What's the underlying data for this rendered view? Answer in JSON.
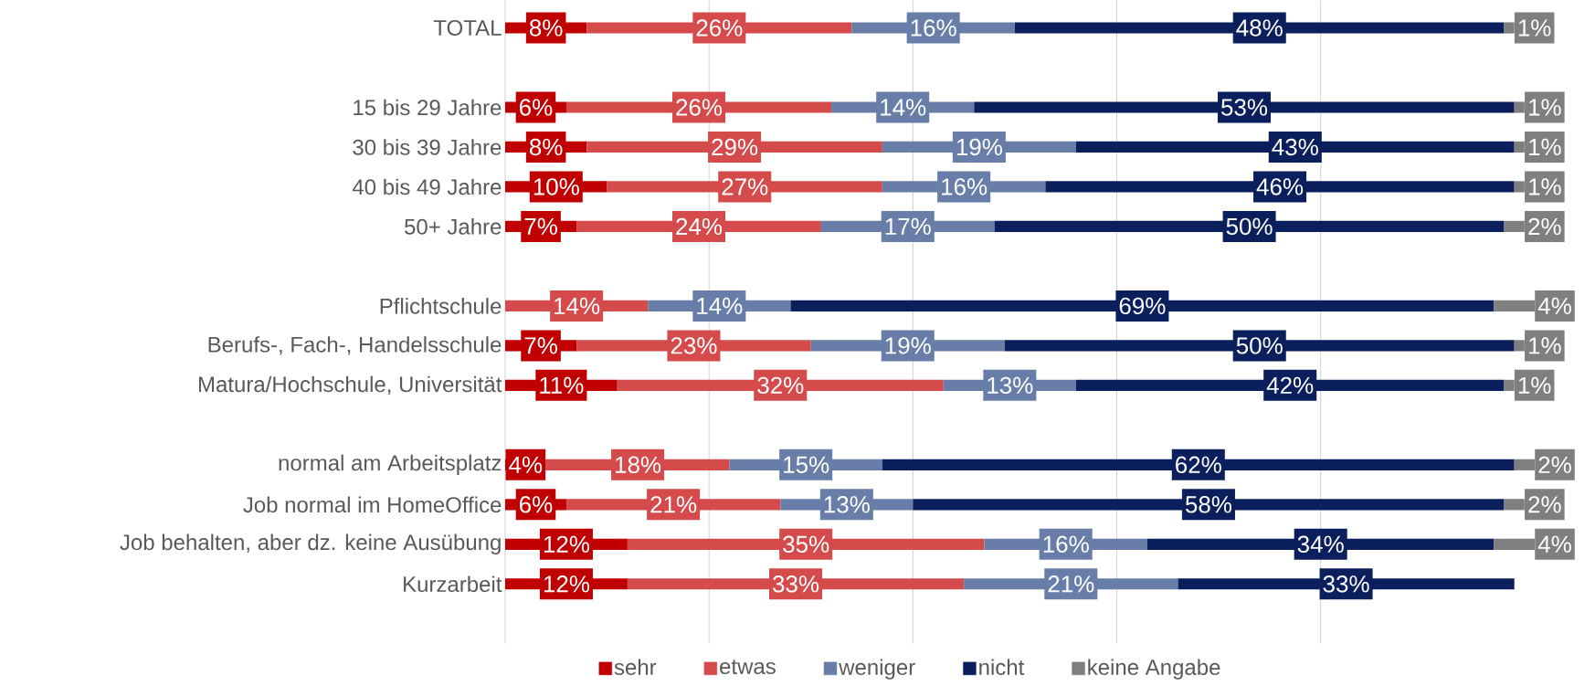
{
  "chart_data": {
    "type": "bar",
    "orientation": "horizontal",
    "stacked": true,
    "categories": [
      "TOTAL",
      null,
      "15 bis 29 Jahre",
      "30 bis 39 Jahre",
      "40 bis 49 Jahre",
      "50+ Jahre",
      null,
      "Pflichtschule",
      "Berufs-, Fach-, Handelsschule",
      "Matura/Hochschule, Universität",
      null,
      "normal am Arbeitsplatz",
      "Job normal im HomeOffice",
      "Job behalten, aber dz. keine  Ausübung",
      "Kurzarbeit"
    ],
    "series": [
      {
        "name": "sehr",
        "color": "#c00000",
        "values": [
          8,
          null,
          6,
          8,
          10,
          7,
          null,
          null,
          7,
          11,
          null,
          4,
          6,
          12,
          12
        ],
        "value_labels": [
          "8%",
          null,
          "6%",
          "8%",
          "10%",
          "7%",
          null,
          null,
          "7%",
          "11%",
          null,
          "4%",
          "6%",
          "12%",
          "12%"
        ]
      },
      {
        "name": "etwas",
        "color": "#d54b4b",
        "values": [
          26,
          null,
          26,
          29,
          27,
          24,
          null,
          14,
          23,
          32,
          null,
          18,
          21,
          35,
          33
        ],
        "value_labels": [
          "26%",
          null,
          "26%",
          "29%",
          "27%",
          "24%",
          null,
          "14%",
          "23%",
          "32%",
          null,
          "18%",
          "21%",
          "35%",
          "33%"
        ]
      },
      {
        "name": "weniger",
        "color": "#687ea8",
        "values": [
          16,
          null,
          14,
          19,
          16,
          17,
          null,
          14,
          19,
          13,
          null,
          15,
          13,
          16,
          21
        ],
        "value_labels": [
          "16%",
          null,
          "14%",
          "19%",
          "16%",
          "17%",
          null,
          "14%",
          "19%",
          "13%",
          null,
          "15%",
          "13%",
          "16%",
          "21%"
        ]
      },
      {
        "name": "nicht",
        "color": "#0b1f5c",
        "values": [
          48,
          null,
          53,
          43,
          46,
          50,
          null,
          69,
          50,
          42,
          null,
          62,
          58,
          34,
          33
        ],
        "value_labels": [
          "48%",
          null,
          "53%",
          "43%",
          "46%",
          "50%",
          null,
          "69%",
          "50%",
          "42%",
          null,
          "62%",
          "58%",
          "34%",
          "33%"
        ]
      },
      {
        "name": "keine Angabe",
        "color": "#7f7f7f",
        "values": [
          1,
          null,
          1,
          1,
          1,
          2,
          null,
          4,
          1,
          1,
          null,
          2,
          2,
          4,
          null
        ],
        "value_labels": [
          "1%",
          null,
          "1%",
          "1%",
          "1%",
          "2%",
          null,
          "4%",
          "1%",
          "1%",
          null,
          "2%",
          "2%",
          "4%",
          null
        ]
      }
    ],
    "xlim": [
      0,
      101
    ],
    "xticks": [
      {
        "value": 0,
        "label": null
      },
      {
        "value": 20,
        "label": null
      },
      {
        "value": 40,
        "label": null
      },
      {
        "value": 60,
        "label": null
      },
      {
        "value": 80,
        "label": null
      }
    ],
    "grid": "x",
    "tick_labels": "y",
    "legend": "bottom"
  }
}
